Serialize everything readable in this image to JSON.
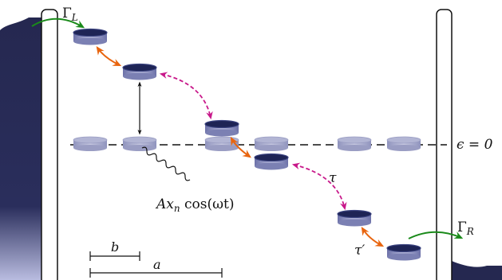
{
  "labels": {
    "gamma_left": "Γ",
    "gamma_left_sub": "L",
    "gamma_right": "Γ",
    "gamma_right_sub": "R",
    "epsilon_zero": "ϵ = 0",
    "tau": "τ",
    "tau_prime": "τ′",
    "drive_A": "Ax",
    "drive_n": "n",
    "drive_rest": " cos(ωt)",
    "length_b": "b",
    "length_a": "a"
  },
  "colors": {
    "lead": "#252850",
    "barrier_stroke": "#111111",
    "disk_active_top": "#1e2455",
    "disk_active_rim": "#3b4380",
    "disk_active_side": "#8c90bd",
    "disk_idle_top": "#b2b5d4",
    "disk_idle_side": "#9a9dc3",
    "arrow_orange": "#e8650f",
    "arrow_magenta": "#c8188a",
    "arrow_green": "#1a8a1a"
  }
}
